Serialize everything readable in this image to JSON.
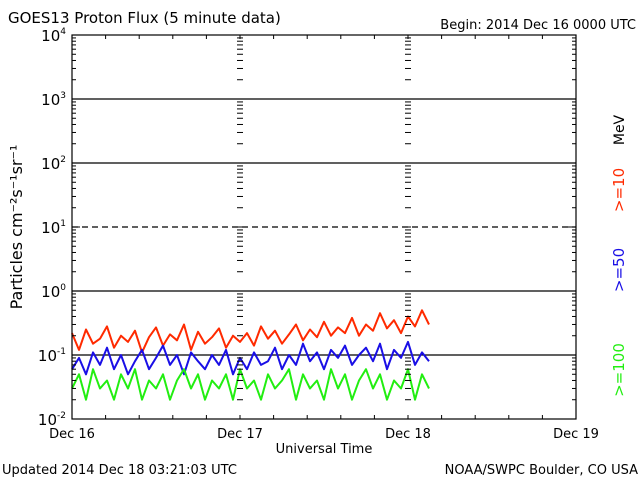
{
  "chart_data": {
    "type": "line",
    "title": "GOES13 Proton Flux (5 minute data)",
    "begin_label": "Begin: 2014 Dec 16 0000 UTC",
    "xlabel": "Universal Time",
    "ylabel": "Particles cm⁻²s⁻¹sr⁻¹",
    "footer_left": "Updated 2014 Dec 18 03:21:03 UTC",
    "footer_right": "NOAA/SWPC Boulder, CO USA",
    "x_unit": "hours since 2014 Dec 16 0000 UTC",
    "xlim": [
      0,
      72
    ],
    "x_ticks": [
      {
        "value": 0,
        "label": "Dec 16"
      },
      {
        "value": 24,
        "label": "Dec 17"
      },
      {
        "value": 48,
        "label": "Dec 18"
      },
      {
        "value": 72,
        "label": "Dec 19"
      }
    ],
    "y_scale": "log",
    "ylim": [
      0.01,
      10000
    ],
    "y_ticks": [
      {
        "exp": 4,
        "label": "10",
        "sup": "4"
      },
      {
        "exp": 3,
        "label": "10",
        "sup": "3"
      },
      {
        "exp": 2,
        "label": "10",
        "sup": "2"
      },
      {
        "exp": 1,
        "label": "10",
        "sup": "1"
      },
      {
        "exp": 0,
        "label": "10",
        "sup": "0"
      },
      {
        "exp": -1,
        "label": "10",
        "sup": "-1"
      },
      {
        "exp": -2,
        "label": "10",
        "sup": "-2"
      }
    ],
    "grid_solid_exps": [
      3,
      2,
      0,
      -1
    ],
    "grid_dashed_exps": [
      1
    ],
    "unit_label": "MeV",
    "x_step_hours": 1,
    "series": [
      {
        "name": ">=10",
        "color": "#ff2a00",
        "values": [
          0.22,
          0.12,
          0.25,
          0.15,
          0.18,
          0.28,
          0.13,
          0.2,
          0.16,
          0.24,
          0.11,
          0.19,
          0.27,
          0.14,
          0.21,
          0.17,
          0.3,
          0.12,
          0.23,
          0.15,
          0.19,
          0.26,
          0.13,
          0.2,
          0.16,
          0.22,
          0.14,
          0.28,
          0.18,
          0.24,
          0.15,
          0.21,
          0.3,
          0.17,
          0.25,
          0.19,
          0.33,
          0.2,
          0.27,
          0.22,
          0.38,
          0.2,
          0.3,
          0.24,
          0.45,
          0.26,
          0.35,
          0.22,
          0.4,
          0.28,
          0.5,
          0.3
        ]
      },
      {
        "name": ">=50",
        "color": "#1a0fe6",
        "values": [
          0.06,
          0.09,
          0.05,
          0.11,
          0.07,
          0.13,
          0.06,
          0.1,
          0.05,
          0.08,
          0.12,
          0.06,
          0.09,
          0.14,
          0.07,
          0.1,
          0.05,
          0.11,
          0.08,
          0.06,
          0.1,
          0.07,
          0.12,
          0.05,
          0.09,
          0.06,
          0.11,
          0.07,
          0.08,
          0.13,
          0.06,
          0.1,
          0.07,
          0.15,
          0.08,
          0.11,
          0.06,
          0.12,
          0.09,
          0.14,
          0.07,
          0.1,
          0.13,
          0.08,
          0.15,
          0.06,
          0.12,
          0.09,
          0.16,
          0.07,
          0.11,
          0.08
        ]
      },
      {
        "name": ">=100",
        "color": "#22ee11",
        "values": [
          0.03,
          0.05,
          0.02,
          0.06,
          0.03,
          0.04,
          0.02,
          0.05,
          0.03,
          0.06,
          0.02,
          0.04,
          0.03,
          0.05,
          0.02,
          0.04,
          0.06,
          0.03,
          0.05,
          0.02,
          0.04,
          0.03,
          0.05,
          0.02,
          0.06,
          0.03,
          0.04,
          0.02,
          0.05,
          0.03,
          0.04,
          0.06,
          0.02,
          0.05,
          0.03,
          0.04,
          0.02,
          0.06,
          0.03,
          0.05,
          0.02,
          0.04,
          0.06,
          0.03,
          0.05,
          0.02,
          0.04,
          0.03,
          0.06,
          0.02,
          0.05,
          0.03
        ]
      }
    ]
  }
}
